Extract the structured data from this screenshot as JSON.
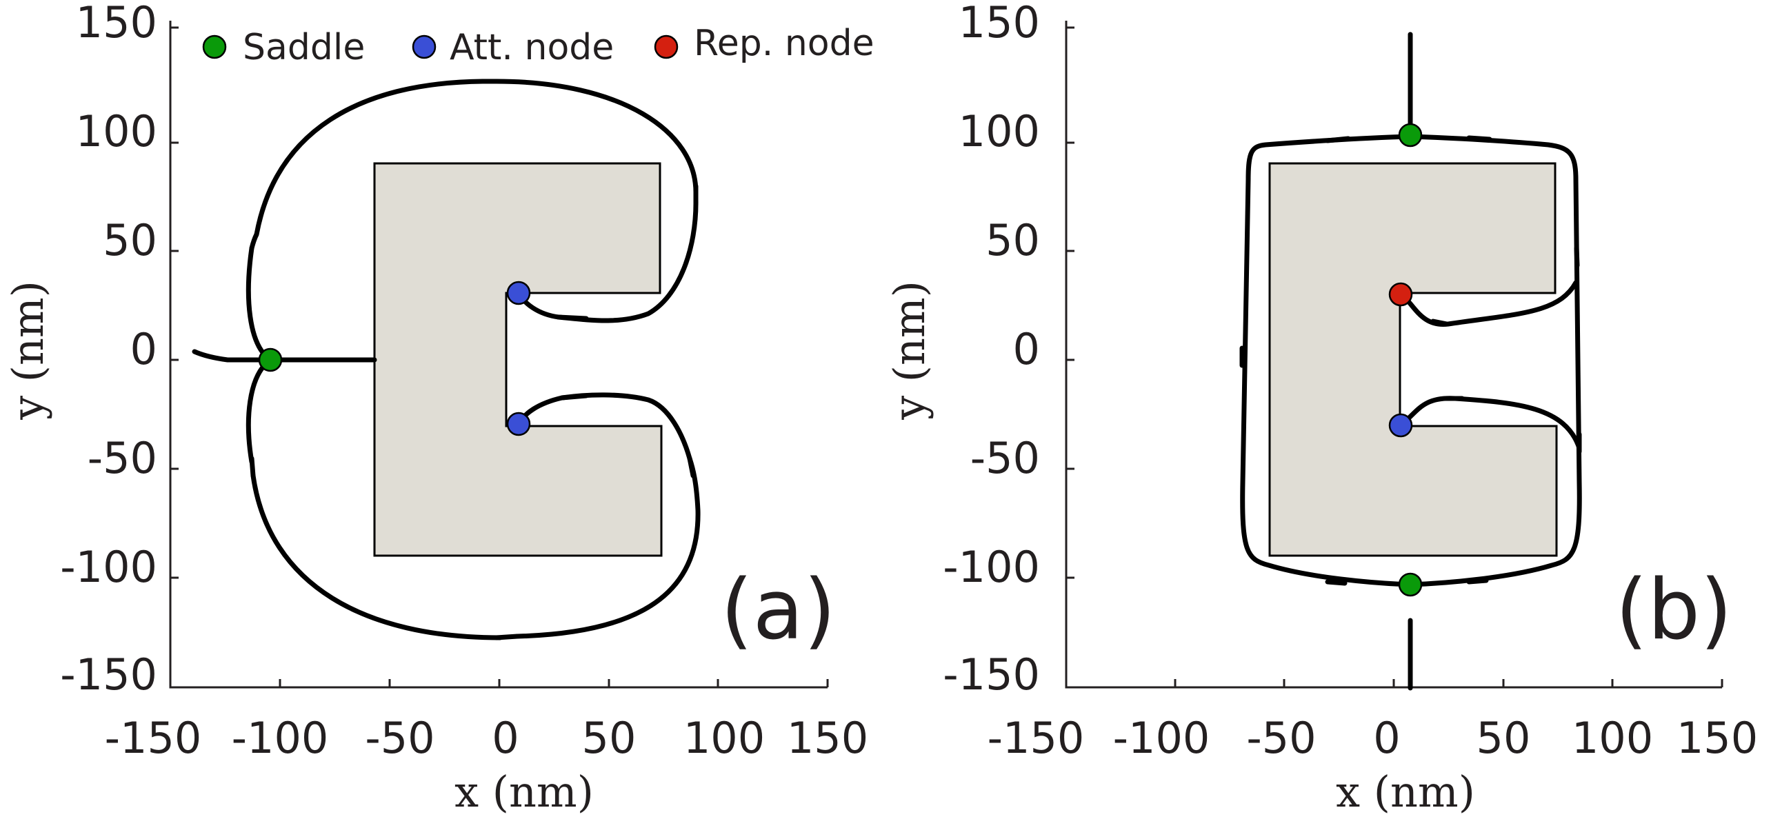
{
  "legend": {
    "saddle_label": "Saddle",
    "att_label": "Att. node",
    "rep_label": "Rep. node"
  },
  "colors": {
    "saddle": "#0a9a0a",
    "att_node": "#3a4fd6",
    "rep_node": "#d42010",
    "shape_fill": "#e0ddd5"
  },
  "axes": {
    "x_label": "x (nm)",
    "y_label": "y (nm)",
    "x_ticks": [
      "-150",
      "-100",
      "-50",
      "0",
      "50",
      "100",
      "150"
    ],
    "y_ticks": [
      "150",
      "100",
      "50",
      "0",
      "-50",
      "-100",
      "-150"
    ],
    "range": [
      -150,
      150
    ]
  },
  "panels": {
    "a": {
      "label": "(a)",
      "saddles": [
        [
          -105,
          0
        ]
      ],
      "att_nodes": [
        [
          9,
          30
        ],
        [
          9,
          -30
        ]
      ],
      "rep_nodes": []
    },
    "b": {
      "label": "(b)",
      "saddles": [
        [
          9,
          103
        ],
        [
          9,
          -103
        ]
      ],
      "att_nodes": [
        [
          5,
          -30
        ]
      ],
      "rep_nodes": [
        [
          5,
          30
        ]
      ]
    }
  }
}
